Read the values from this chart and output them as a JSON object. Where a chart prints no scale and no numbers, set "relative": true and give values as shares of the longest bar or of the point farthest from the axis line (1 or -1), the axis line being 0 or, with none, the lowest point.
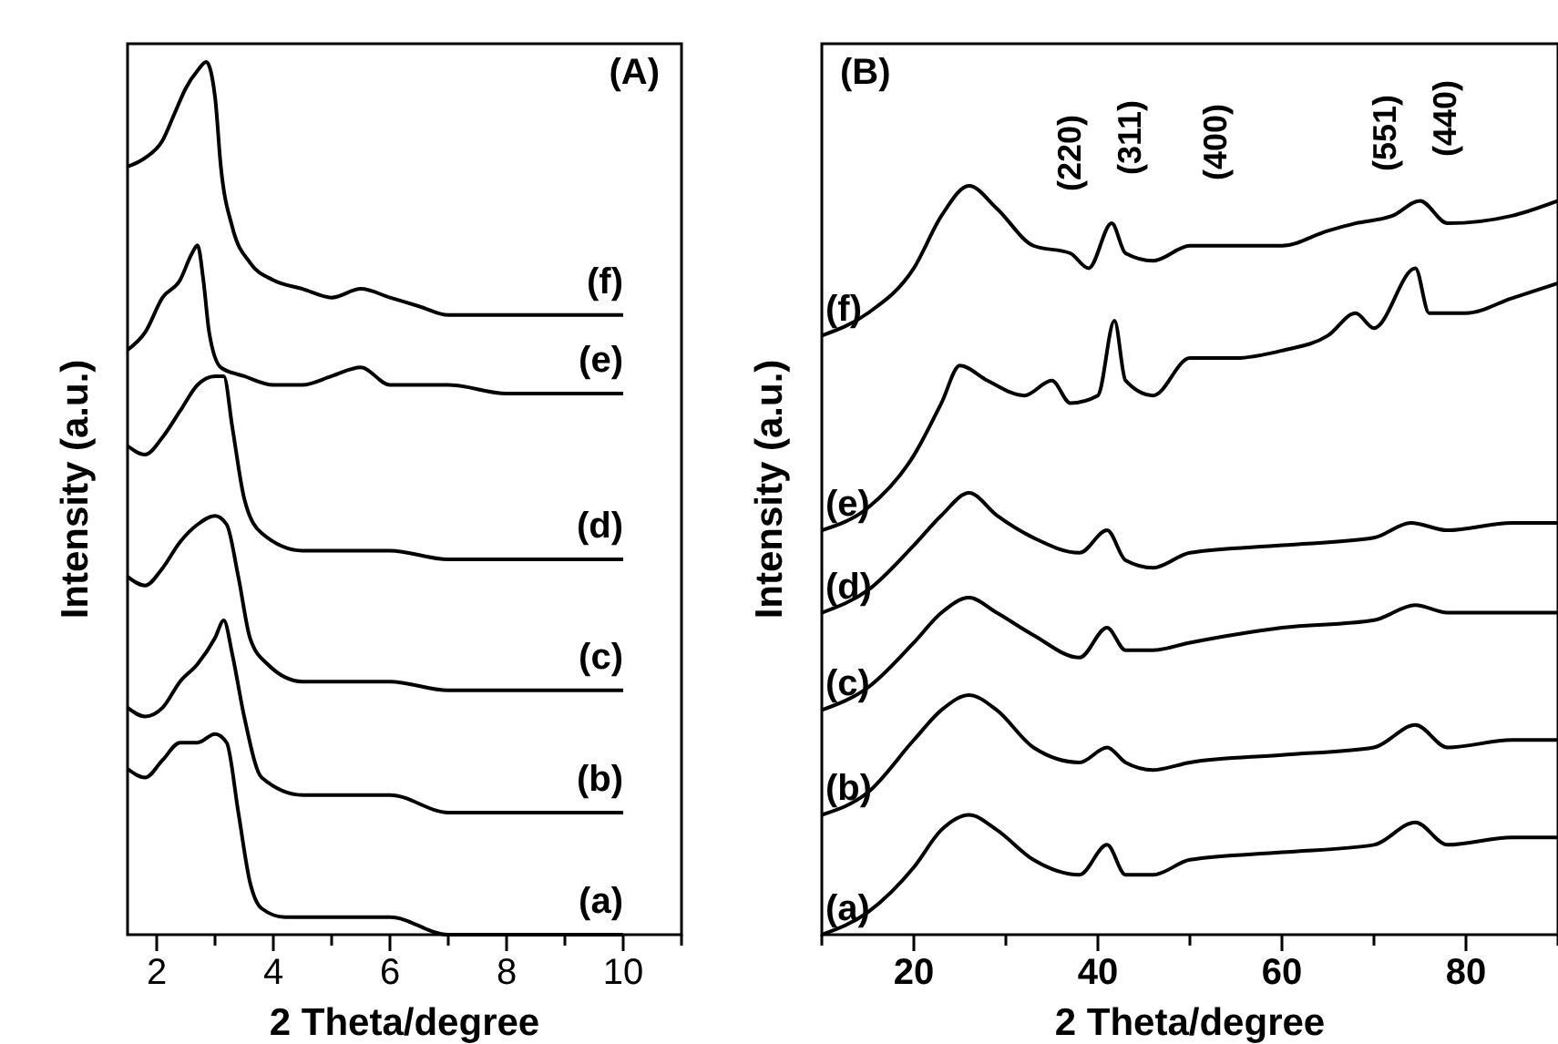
{
  "chart_data": [
    {
      "type": "line",
      "relative": true,
      "xlabel": "2 Theta/degree",
      "ylabel": "Intensity (a.u.)",
      "annotations": [
        "(A)"
      ],
      "xlim": [
        1.5,
        11
      ],
      "xticks": [
        2,
        {
          "value": 3,
          "label": null
        },
        4,
        {
          "value": 5,
          "label": null
        },
        6,
        {
          "value": 7,
          "label": null
        },
        8,
        {
          "value": 9,
          "label": null
        },
        10,
        {
          "value": 11,
          "label": null
        }
      ],
      "series": [
        {
          "name": "(a)",
          "color": "#000000",
          "x": [
            1.5,
            1.8,
            2.1,
            2.4,
            2.7,
            3.0,
            3.2,
            3.4,
            3.6,
            3.8,
            4.2,
            5,
            6,
            7,
            8,
            10
          ],
          "values": [
            0.19,
            0.18,
            0.2,
            0.22,
            0.22,
            0.23,
            0.22,
            0.14,
            0.06,
            0.03,
            0.02,
            0.02,
            0.02,
            0.0,
            0.0,
            0.0
          ]
        },
        {
          "name": "(b)",
          "color": "#000000",
          "x": [
            1.5,
            1.8,
            2.1,
            2.4,
            2.7,
            3.0,
            3.15,
            3.3,
            3.5,
            3.8,
            4.5,
            5,
            6,
            7,
            8,
            10
          ],
          "values": [
            0.26,
            0.25,
            0.26,
            0.29,
            0.31,
            0.34,
            0.36,
            0.32,
            0.25,
            0.18,
            0.16,
            0.16,
            0.16,
            0.14,
            0.14,
            0.14
          ]
        },
        {
          "name": "(c)",
          "color": "#000000",
          "x": [
            1.5,
            1.8,
            2.1,
            2.4,
            2.7,
            3.0,
            3.2,
            3.4,
            3.6,
            3.9,
            4.5,
            5,
            6,
            7,
            8,
            10
          ],
          "values": [
            0.41,
            0.4,
            0.42,
            0.45,
            0.47,
            0.48,
            0.47,
            0.41,
            0.34,
            0.31,
            0.29,
            0.29,
            0.29,
            0.28,
            0.28,
            0.28
          ]
        },
        {
          "name": "(d)",
          "color": "#000000",
          "x": [
            1.5,
            1.8,
            2.1,
            2.4,
            2.7,
            3.0,
            3.15,
            3.3,
            3.5,
            3.8,
            4.5,
            5,
            5.5,
            6,
            7,
            8,
            10
          ],
          "values": [
            0.56,
            0.55,
            0.57,
            0.6,
            0.63,
            0.64,
            0.64,
            0.58,
            0.5,
            0.46,
            0.44,
            0.44,
            0.44,
            0.44,
            0.43,
            0.43,
            0.43
          ]
        },
        {
          "name": "(e)",
          "color": "#000000",
          "x": [
            1.5,
            1.8,
            2.1,
            2.4,
            2.6,
            2.7,
            2.8,
            2.9,
            3.1,
            3.5,
            4,
            4.5,
            5,
            5.5,
            6,
            7,
            8,
            10
          ],
          "values": [
            0.67,
            0.69,
            0.73,
            0.75,
            0.78,
            0.79,
            0.75,
            0.69,
            0.65,
            0.64,
            0.63,
            0.63,
            0.64,
            0.65,
            0.63,
            0.63,
            0.62,
            0.62
          ]
        },
        {
          "name": "(f)",
          "color": "#000000",
          "x": [
            1.5,
            1.8,
            2.1,
            2.3,
            2.5,
            2.7,
            2.85,
            3.0,
            3.1,
            3.3,
            3.6,
            4,
            4.5,
            5,
            5.5,
            6,
            6.5,
            7,
            8,
            9,
            10
          ],
          "values": [
            0.88,
            0.89,
            0.91,
            0.94,
            0.97,
            0.99,
            1.0,
            0.96,
            0.88,
            0.81,
            0.77,
            0.75,
            0.74,
            0.73,
            0.74,
            0.73,
            0.72,
            0.71,
            0.71,
            0.71,
            0.71
          ]
        }
      ]
    },
    {
      "type": "line",
      "relative": true,
      "xlabel": "2 Theta/degree",
      "ylabel": "Intensity (a.u.)",
      "xlim": [
        10,
        90
      ],
      "xticks": [
        {
          "value": 10,
          "label": null
        },
        20,
        {
          "value": 30,
          "label": null
        },
        40,
        {
          "value": 50,
          "label": null
        },
        60,
        {
          "value": 70,
          "label": null
        },
        80,
        {
          "value": 90,
          "label": null
        }
      ],
      "annotations": [
        "(B)",
        "(220)",
        "(311)",
        "(400)",
        "(551)",
        "(440)"
      ],
      "series": [
        {
          "name": "(a)",
          "color": "#000000",
          "x": [
            10,
            15,
            20,
            23,
            26,
            29,
            33,
            38,
            41,
            43,
            46,
            50,
            60,
            70,
            74.5,
            78,
            85,
            90
          ],
          "values": [
            0.0,
            0.03,
            0.09,
            0.14,
            0.16,
            0.14,
            0.1,
            0.08,
            0.12,
            0.08,
            0.08,
            0.1,
            0.11,
            0.12,
            0.15,
            0.12,
            0.13,
            0.13
          ]
        },
        {
          "name": "(b)",
          "color": "#000000",
          "x": [
            10,
            15,
            20,
            23,
            26,
            29,
            33,
            38,
            41,
            43,
            46,
            50,
            60,
            70,
            74.5,
            78,
            85,
            90
          ],
          "values": [
            0.16,
            0.19,
            0.26,
            0.3,
            0.32,
            0.3,
            0.25,
            0.23,
            0.25,
            0.23,
            0.22,
            0.23,
            0.24,
            0.25,
            0.28,
            0.25,
            0.26,
            0.26
          ]
        },
        {
          "name": "(c)",
          "color": "#000000",
          "x": [
            10,
            15,
            20,
            23,
            26,
            29,
            33,
            38,
            41,
            43,
            46,
            50,
            60,
            70,
            74.5,
            78,
            85,
            90
          ],
          "values": [
            0.3,
            0.33,
            0.39,
            0.43,
            0.45,
            0.43,
            0.4,
            0.37,
            0.41,
            0.38,
            0.38,
            0.39,
            0.41,
            0.42,
            0.44,
            0.43,
            0.43,
            0.43
          ]
        },
        {
          "name": "(d)",
          "color": "#000000",
          "x": [
            10,
            15,
            20,
            23,
            26,
            29,
            33,
            38,
            41,
            43,
            46,
            50,
            60,
            70,
            74,
            78,
            85,
            90
          ],
          "values": [
            0.43,
            0.46,
            0.52,
            0.56,
            0.59,
            0.56,
            0.53,
            0.51,
            0.54,
            0.5,
            0.49,
            0.51,
            0.52,
            0.53,
            0.55,
            0.54,
            0.55,
            0.55
          ]
        },
        {
          "name": "(e)",
          "color": "#000000",
          "x": [
            10,
            15,
            20,
            23,
            25,
            28,
            32,
            35,
            37,
            40,
            41.8,
            43,
            46,
            50,
            55,
            60,
            65,
            68,
            70,
            74.5,
            76,
            80,
            85,
            90
          ],
          "values": [
            0.54,
            0.57,
            0.64,
            0.71,
            0.76,
            0.74,
            0.72,
            0.74,
            0.71,
            0.72,
            0.82,
            0.74,
            0.72,
            0.77,
            0.77,
            0.78,
            0.8,
            0.83,
            0.81,
            0.89,
            0.83,
            0.83,
            0.85,
            0.87
          ]
        },
        {
          "name": "(f)",
          "color": "#000000",
          "x": [
            10,
            15,
            20,
            23,
            26,
            29,
            33,
            37,
            39,
            41.5,
            43,
            46,
            50,
            55,
            60,
            65,
            68,
            72,
            75,
            78,
            85,
            90
          ],
          "values": [
            0.8,
            0.83,
            0.89,
            0.96,
            1.0,
            0.97,
            0.92,
            0.91,
            0.89,
            0.95,
            0.91,
            0.9,
            0.92,
            0.92,
            0.92,
            0.94,
            0.95,
            0.96,
            0.98,
            0.95,
            0.96,
            0.98
          ]
        }
      ]
    }
  ]
}
